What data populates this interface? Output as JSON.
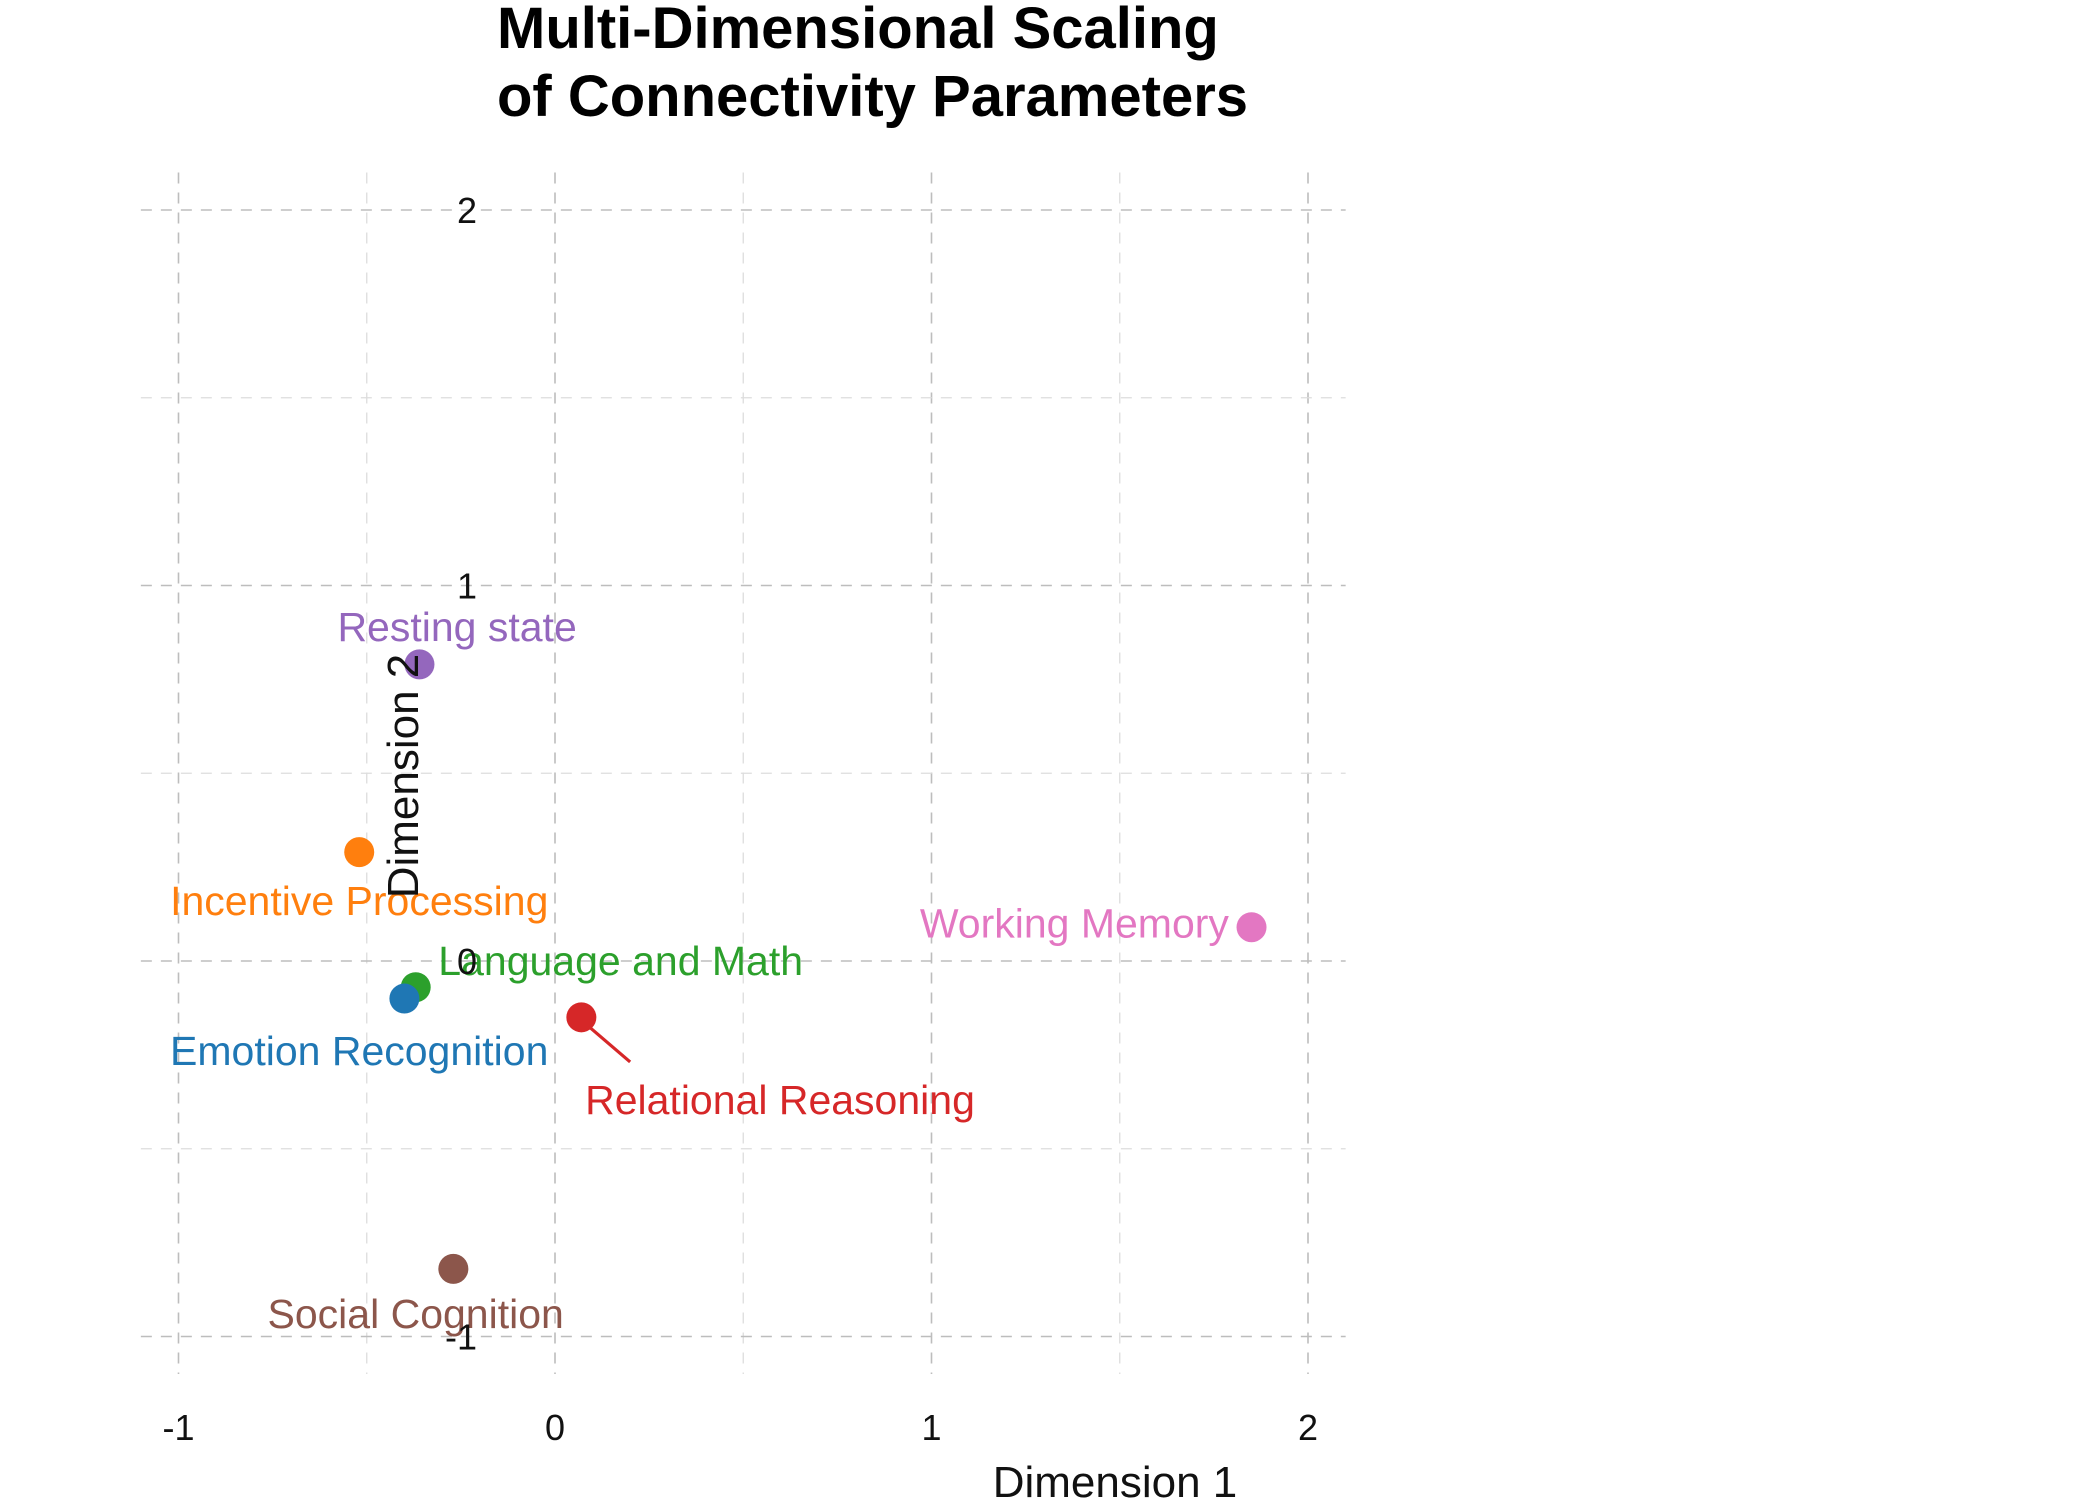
{
  "chart_data": {
    "type": "scatter",
    "title": [
      "Multi-Dimensional Scaling",
      "of Connectivity Parameters"
    ],
    "xlabel": "Dimension 1",
    "ylabel": "Dimension 2",
    "xlim": [
      -1.1,
      2.1
    ],
    "ylim": [
      -1.1,
      2.1
    ],
    "x_ticks": [
      -1,
      0,
      1,
      2
    ],
    "x_tick_labels": [
      "-1",
      "0",
      "1",
      "2"
    ],
    "y_ticks": [
      -1,
      0,
      1,
      2
    ],
    "y_tick_labels": [
      "-1",
      "0",
      "1",
      "2"
    ],
    "grid": true,
    "legend": "none",
    "points": [
      {
        "name": "Resting state",
        "x": -0.36,
        "y": 0.79,
        "color": "#9467bd",
        "label_anchor": "middle",
        "label_dx": 0.1,
        "label_dy": 0.1
      },
      {
        "name": "Incentive Processing",
        "x": -0.52,
        "y": 0.29,
        "color": "#ff7f0e",
        "label_anchor": "middle",
        "label_dx": 0.0,
        "label_dy": -0.13
      },
      {
        "name": "Working Memory",
        "x": 1.85,
        "y": 0.09,
        "color": "#e377c2",
        "label_anchor": "end",
        "label_dx": -0.06,
        "label_dy": 0.01
      },
      {
        "name": "Language and Math",
        "x": -0.37,
        "y": -0.07,
        "color": "#2ca02c",
        "label_anchor": "start",
        "label_dx": 0.06,
        "label_dy": 0.07
      },
      {
        "name": "Emotion Recognition",
        "x": -0.4,
        "y": -0.1,
        "color": "#1f77b4",
        "label_anchor": "middle",
        "label_dx": -0.12,
        "label_dy": -0.14
      },
      {
        "name": "Relational Reasoning",
        "x": 0.07,
        "y": -0.15,
        "color": "#d62728",
        "label_anchor": "start",
        "label_dx": 0.01,
        "label_dy": -0.22,
        "leader": true
      },
      {
        "name": "Social Cognition",
        "x": -0.27,
        "y": -0.82,
        "color": "#8c564b",
        "label_anchor": "middle",
        "label_dx": -0.1,
        "label_dy": -0.12
      }
    ]
  }
}
